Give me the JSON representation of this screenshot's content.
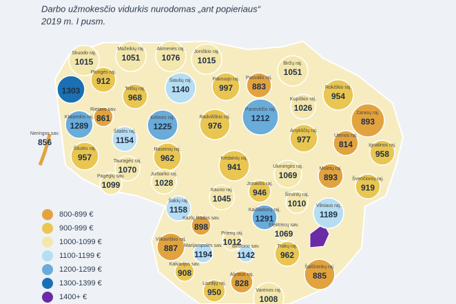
{
  "title": "Darbo užmokesčio vidurkis nurodomas „ant popieriaus“",
  "subtitle": "2019 m. I pusm.",
  "legend": [
    {
      "label": "800-899 €",
      "color": "#e2a33f"
    },
    {
      "label": "900-999 €",
      "color": "#e9c651"
    },
    {
      "label": "1000-1099 €",
      "color": "#f4e7ad"
    },
    {
      "label": "1100-1199 €",
      "color": "#b6ddf2"
    },
    {
      "label": "1200-1299 €",
      "color": "#69abd9"
    },
    {
      "label": "1300-1399 €",
      "color": "#1b6fb3"
    },
    {
      "label": "1400+ €",
      "color": "#6b2aa6"
    }
  ],
  "regions": [
    {
      "name": "Skuodo raj.",
      "value": 1015,
      "color": "#f4e7ad"
    },
    {
      "name": "Mažeikių raj.",
      "value": 1051,
      "color": "#f4e7ad"
    },
    {
      "name": "Akmenės raj.",
      "value": 1076,
      "color": "#f4e7ad"
    },
    {
      "name": "Joniškio raj.",
      "value": 1015,
      "color": "#f4e7ad"
    },
    {
      "name": "Biržų raj.",
      "value": 1051,
      "color": "#f4e7ad"
    },
    {
      "value": 1303,
      "color": "#1b6fb3"
    },
    {
      "name": "Plungės raj.",
      "value": 912,
      "color": "#e9c651"
    },
    {
      "name": "Telšių raj.",
      "value": 968,
      "color": "#e9c651"
    },
    {
      "name": "Šiaulių raj.",
      "value": 1140,
      "color": "#b6ddf2"
    },
    {
      "name": "Pakruojo raj.",
      "value": 997,
      "color": "#e9c651"
    },
    {
      "name": "Pasvalio raj.",
      "value": 883,
      "color": "#e2a33f"
    },
    {
      "name": "Kupiškio raj.",
      "value": 1026,
      "color": "#f4e7ad"
    },
    {
      "name": "Rokiškio raj.",
      "value": 954,
      "color": "#e9c651"
    },
    {
      "name": "Klaipėdos raj.",
      "value": 1289,
      "color": "#69abd9"
    },
    {
      "name": "Rietavo sav.",
      "value": 861,
      "color": "#e2a33f"
    },
    {
      "name": "Kelmės raj.",
      "value": 1225,
      "color": "#69abd9"
    },
    {
      "name": "Radviliškio raj.",
      "value": 976,
      "color": "#e9c651"
    },
    {
      "name": "Panevėžio raj.",
      "value": 1212,
      "color": "#69abd9"
    },
    {
      "name": "Anykščių raj.",
      "value": 977,
      "color": "#e9c651"
    },
    {
      "name": "Zarasų raj.",
      "value": 893,
      "color": "#e2a33f"
    },
    {
      "name": "Utenos raj.",
      "value": 814,
      "color": "#e2a33f"
    },
    {
      "name": "Ignalinos raj.",
      "value": 958,
      "color": "#e9c651"
    },
    {
      "name": "Neringos sav.",
      "value": 856,
      "color": "#e2a33f"
    },
    {
      "name": "Šilutės raj.",
      "value": 957,
      "color": "#e9c651"
    },
    {
      "name": "Šilalės raj.",
      "value": 1154,
      "color": "#b6ddf2"
    },
    {
      "name": "Raseinių raj.",
      "value": 962,
      "color": "#e9c651"
    },
    {
      "name": "Kėdainių raj.",
      "value": 941,
      "color": "#e9c651"
    },
    {
      "name": "Tauragės raj.",
      "value": 1070,
      "color": "#f4e7ad"
    },
    {
      "name": "Ukmergės raj.",
      "value": 1069,
      "color": "#f4e7ad"
    },
    {
      "name": "Molėtų raj.",
      "value": 893,
      "color": "#e2a33f"
    },
    {
      "name": "Švenčionių raj.",
      "value": 919,
      "color": "#e9c651"
    },
    {
      "name": "Pagėgių sav.",
      "value": 1099,
      "color": "#f4e7ad"
    },
    {
      "name": "Jurbarko raj.",
      "value": 1028,
      "color": "#f4e7ad"
    },
    {
      "name": "Jonavos raj.",
      "value": 946,
      "color": "#e9c651"
    },
    {
      "name": "Kauno raj.",
      "value": 1045,
      "color": "#f4e7ad"
    },
    {
      "name": "Širvintų raj.",
      "value": 1010,
      "color": "#f4e7ad"
    },
    {
      "name": "Vilniaus raj.",
      "value": 1189,
      "color": "#b6ddf2"
    },
    {
      "name": "Šakių raj.",
      "value": 1158,
      "color": "#b6ddf2"
    },
    {
      "name": "Kazlų Rūdos sav.",
      "value": 898,
      "color": "#e2a33f"
    },
    {
      "name": "Kaišiadorių raj.",
      "value": 1291,
      "color": "#69abd9"
    },
    {
      "name": "Elektrėnų sav.",
      "value": 1069,
      "color": "#f4e7ad"
    },
    {
      "name": "Vilkaviškio raj.",
      "value": 887,
      "color": "#e2a33f"
    },
    {
      "name": "Prienų raj.",
      "value": 1012,
      "color": "#f4e7ad"
    },
    {
      "name": "Marijampolės sav.",
      "value": 1194,
      "color": "#b6ddf2"
    },
    {
      "name": "Birštono sav.",
      "value": 1142,
      "color": "#b6ddf2"
    },
    {
      "name": "Trakų raj.",
      "value": 962,
      "color": "#e9c651"
    },
    {
      "name": "Kalvarijos sav.",
      "value": 908,
      "color": "#e9c651"
    },
    {
      "name": "Alytaus raj.",
      "value": 828,
      "color": "#e2a33f"
    },
    {
      "name": "Šalčininkų raj.",
      "value": 885,
      "color": "#e2a33f"
    },
    {
      "name": "Lazdijų raj.",
      "value": 950,
      "color": "#e9c651"
    },
    {
      "name": "Varėnos raj.",
      "value": 1008,
      "color": "#f4e7ad"
    }
  ]
}
